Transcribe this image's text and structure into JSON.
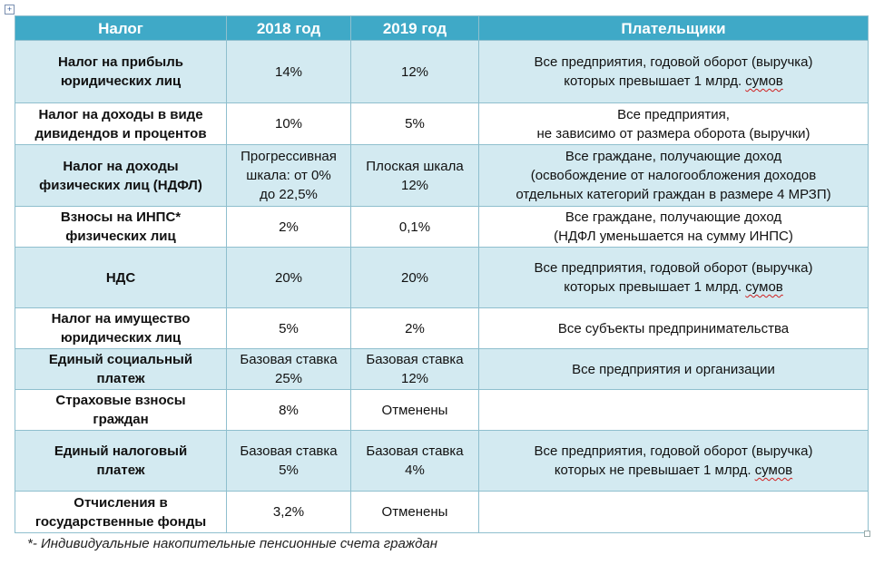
{
  "headers": [
    "Налог",
    "2018 год",
    "2019 год",
    "Плательщики"
  ],
  "rows": [
    {
      "tax": [
        "Налог на прибыль",
        "юридических лиц"
      ],
      "y2018": [
        "14%"
      ],
      "y2019": [
        "12%"
      ],
      "payers": [
        "Все предприятия, годовой оборот (выручка)",
        "которых превышает 1 млрд. ",
        "сумов"
      ]
    },
    {
      "tax": [
        "Налог на доходы в виде",
        "дивидендов и процентов"
      ],
      "y2018": [
        "10%"
      ],
      "y2019": [
        "5%"
      ],
      "payers": [
        "Все предприятия,",
        "не зависимо от размера оборота (выручки)"
      ]
    },
    {
      "tax": [
        "Налог на доходы",
        "физических лиц (НДФЛ)"
      ],
      "y2018": [
        "Прогрессивная",
        "шкала: от 0%",
        "до 22,5%"
      ],
      "y2019": [
        "Плоская шкала",
        "12%"
      ],
      "payers": [
        "Все граждане, получающие доход",
        "(освобождение от налогообложения доходов",
        "отдельных категорий граждан в размере 4 МРЗП)"
      ]
    },
    {
      "tax": [
        "Взносы на ИНПС*",
        "физических лиц"
      ],
      "y2018": [
        "2%"
      ],
      "y2019": [
        "0,1%"
      ],
      "payers": [
        "Все граждане, получающие доход",
        "(НДФЛ уменьшается на сумму ИНПС)"
      ]
    },
    {
      "tax": [
        "НДС"
      ],
      "y2018": [
        "20%"
      ],
      "y2019": [
        "20%"
      ],
      "payers": [
        "Все предприятия, годовой оборот (выручка)",
        "которых превышает 1 млрд. ",
        "сумов"
      ]
    },
    {
      "tax": [
        "Налог на имущество",
        "юридических лиц"
      ],
      "y2018": [
        "5%"
      ],
      "y2019": [
        "2%"
      ],
      "payers": [
        "Все субъекты предпринимательства"
      ]
    },
    {
      "tax": [
        "Единый социальный",
        "платеж"
      ],
      "y2018": [
        "Базовая ставка",
        "25%"
      ],
      "y2019": [
        "Базовая ставка",
        "12%"
      ],
      "payers": [
        "Все предприятия и организации"
      ]
    },
    {
      "tax": [
        "Страховые взносы",
        "граждан"
      ],
      "y2018": [
        "8%"
      ],
      "y2019": [
        "Отменены"
      ],
      "payers": []
    },
    {
      "tax": [
        "Единый налоговый",
        "платеж"
      ],
      "y2018": [
        "Базовая ставка",
        "5%"
      ],
      "y2019": [
        "Базовая ставка",
        "4%"
      ],
      "payers": [
        "Все предприятия, годовой оборот (выручка)",
        "которых не превышает 1 млрд. ",
        "сумов"
      ]
    },
    {
      "tax": [
        "Отчисления в",
        "государственные фонды"
      ],
      "y2018": [
        "3,2%"
      ],
      "y2019": [
        "Отменены"
      ],
      "payers": []
    }
  ],
  "footnote": "*- Индивидуальные накопительные пенсионные счета граждан"
}
